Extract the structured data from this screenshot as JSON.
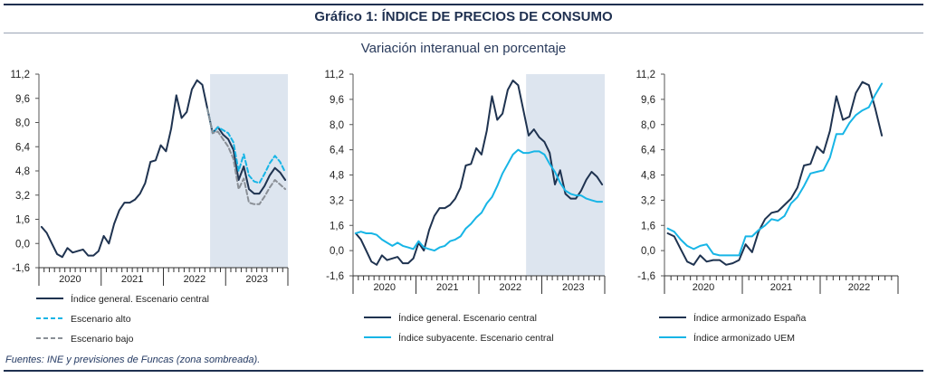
{
  "title": "Gráfico 1: ÍNDICE DE PRECIOS DE CONSUMO",
  "subtitle": "Variación interanual en porcentaje",
  "source": "Fuentes: INE y previsiones de Funcas (zona sombreada).",
  "colors": {
    "dark": "#1f3350",
    "light": "#17b5e6",
    "grey": "#8a8f96",
    "shade": "#dde5ef"
  },
  "chart_data": [
    {
      "type": "line",
      "ylim": [
        -1.6,
        11.2
      ],
      "yticks": [
        "11,2",
        "9,6",
        "8,0",
        "6,4",
        "4,8",
        "3,2",
        "1,6",
        "0,0",
        "-1,6"
      ],
      "ytick_values": [
        11.2,
        9.6,
        8.0,
        6.4,
        4.8,
        3.2,
        1.6,
        0.0,
        -1.6
      ],
      "x_start": "2020-01",
      "n_months": 48,
      "year_labels": [
        "2020",
        "2021",
        "2022",
        "2023"
      ],
      "shade_start_month": 33,
      "legend": [
        "Índice general. Escenario central",
        "Escenario alto",
        "Escenario bajo"
      ],
      "series": [
        {
          "name": "Índice general. Escenario central",
          "style": "dark",
          "start": 0,
          "values": [
            1.1,
            0.7,
            0.0,
            -0.7,
            -0.9,
            -0.3,
            -0.6,
            -0.5,
            -0.4,
            -0.8,
            -0.8,
            -0.5,
            0.5,
            0.0,
            1.3,
            2.2,
            2.7,
            2.7,
            2.9,
            3.3,
            4.0,
            5.4,
            5.5,
            6.5,
            6.1,
            7.6,
            9.8,
            8.3,
            8.7,
            10.2,
            10.8,
            10.5,
            8.9,
            7.3,
            7.7,
            7.2,
            6.9,
            6.2,
            4.2,
            5.1,
            3.6,
            3.3,
            3.3,
            3.8,
            4.5,
            5.0,
            4.7,
            4.2
          ]
        },
        {
          "name": "Escenario alto",
          "style": "light-dash",
          "start": 32,
          "values": [
            8.9,
            7.3,
            7.7,
            7.5,
            7.3,
            6.7,
            4.8,
            5.9,
            4.5,
            4.1,
            4.0,
            4.6,
            5.3,
            5.8,
            5.4,
            4.7
          ]
        },
        {
          "name": "Escenario bajo",
          "style": "grey-dash",
          "start": 32,
          "values": [
            8.9,
            7.3,
            7.4,
            6.9,
            6.4,
            5.6,
            3.6,
            4.3,
            2.7,
            2.6,
            2.6,
            3.1,
            3.7,
            4.2,
            3.9,
            3.6
          ]
        }
      ]
    },
    {
      "type": "line",
      "ylim": [
        -1.6,
        11.2
      ],
      "yticks": [
        "11,2",
        "9,6",
        "8,0",
        "6,4",
        "4,8",
        "3,2",
        "1,6",
        "0,0",
        "-1,6"
      ],
      "ytick_values": [
        11.2,
        9.6,
        8.0,
        6.4,
        4.8,
        3.2,
        1.6,
        0.0,
        -1.6
      ],
      "x_start": "2020-01",
      "n_months": 48,
      "year_labels": [
        "2020",
        "2021",
        "2022",
        "2023"
      ],
      "shade_start_month": 33,
      "legend": [
        "Índice general. Escenario central",
        "Índice subyacente. Escenario central"
      ],
      "series": [
        {
          "name": "Índice general. Escenario central",
          "style": "dark",
          "start": 0,
          "values": [
            1.1,
            0.7,
            0.0,
            -0.7,
            -0.9,
            -0.3,
            -0.6,
            -0.5,
            -0.4,
            -0.8,
            -0.8,
            -0.5,
            0.5,
            0.0,
            1.3,
            2.2,
            2.7,
            2.7,
            2.9,
            3.3,
            4.0,
            5.4,
            5.5,
            6.5,
            6.1,
            7.6,
            9.8,
            8.3,
            8.7,
            10.2,
            10.8,
            10.5,
            8.9,
            7.3,
            7.7,
            7.2,
            6.9,
            6.2,
            4.2,
            5.1,
            3.6,
            3.3,
            3.3,
            3.8,
            4.5,
            5.0,
            4.7,
            4.2
          ]
        },
        {
          "name": "Índice subyacente. Escenario central",
          "style": "light",
          "start": 0,
          "values": [
            1.1,
            1.2,
            1.1,
            1.1,
            1.0,
            0.7,
            0.5,
            0.3,
            0.5,
            0.3,
            0.2,
            0.1,
            0.6,
            0.2,
            0.1,
            0.0,
            0.2,
            0.3,
            0.6,
            0.7,
            0.9,
            1.4,
            1.7,
            2.1,
            2.4,
            3.0,
            3.4,
            4.1,
            4.9,
            5.5,
            6.1,
            6.4,
            6.2,
            6.2,
            6.3,
            6.3,
            6.1,
            5.5,
            5.0,
            4.3,
            3.8,
            3.6,
            3.5,
            3.5,
            3.3,
            3.2,
            3.1,
            3.1
          ]
        }
      ]
    },
    {
      "type": "line",
      "ylim": [
        -1.6,
        11.2
      ],
      "yticks": [
        "11,2",
        "9,6",
        "8,0",
        "6,4",
        "4,8",
        "3,2",
        "1,6",
        "0,0",
        "-1,6"
      ],
      "ytick_values": [
        11.2,
        9.6,
        8.0,
        6.4,
        4.8,
        3.2,
        1.6,
        0.0,
        -1.6
      ],
      "x_start": "2020-01",
      "n_months": 36,
      "year_labels": [
        "2020",
        "2021",
        "2022"
      ],
      "legend": [
        "Índice armonizado España",
        "Índice armonizado UEM"
      ],
      "series": [
        {
          "name": "Índice armonizado España",
          "style": "dark",
          "start": 0,
          "values": [
            1.1,
            0.9,
            0.1,
            -0.7,
            -0.9,
            -0.3,
            -0.7,
            -0.6,
            -0.6,
            -0.9,
            -0.8,
            -0.6,
            0.4,
            -0.1,
            1.2,
            2.0,
            2.4,
            2.5,
            2.9,
            3.3,
            4.0,
            5.4,
            5.5,
            6.6,
            6.2,
            7.6,
            9.8,
            8.3,
            8.5,
            10.0,
            10.7,
            10.5,
            9.0,
            7.3
          ]
        },
        {
          "name": "Índice armonizado UEM",
          "style": "light",
          "start": 0,
          "values": [
            1.4,
            1.2,
            0.7,
            0.3,
            0.1,
            0.3,
            0.4,
            -0.2,
            -0.3,
            -0.3,
            -0.3,
            -0.3,
            0.9,
            0.9,
            1.3,
            1.6,
            2.0,
            1.9,
            2.2,
            3.0,
            3.4,
            4.1,
            4.9,
            5.0,
            5.1,
            5.9,
            7.4,
            7.4,
            8.1,
            8.6,
            8.9,
            9.1,
            9.9,
            10.6
          ]
        }
      ]
    }
  ]
}
